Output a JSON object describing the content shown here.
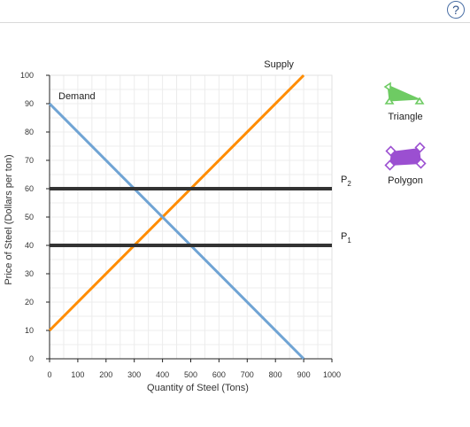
{
  "help": {
    "label": "?"
  },
  "tools": [
    {
      "label": "Triangle",
      "icon": "triangle-tool-icon",
      "color": "#6ecb63"
    },
    {
      "label": "Polygon",
      "icon": "polygon-tool-icon",
      "color": "#9b4fd1"
    }
  ],
  "chart_data": {
    "type": "line",
    "title": "",
    "xlabel": "Quantity of Steel (Tons)",
    "ylabel": "Price of Steel (Dollars per ton)",
    "xlim": [
      0,
      1000
    ],
    "ylim": [
      0,
      100
    ],
    "x_ticks": [
      0,
      100,
      200,
      300,
      400,
      500,
      600,
      700,
      800,
      900,
      1000
    ],
    "y_ticks": [
      0,
      10,
      20,
      30,
      40,
      50,
      60,
      70,
      80,
      90,
      100
    ],
    "grid": true,
    "series": [
      {
        "name": "Supply",
        "color": "#ff8c00",
        "points": [
          [
            0,
            10
          ],
          [
            900,
            100
          ]
        ]
      },
      {
        "name": "Demand",
        "color": "#70a4d4",
        "points": [
          [
            0,
            90
          ],
          [
            900,
            0
          ]
        ]
      },
      {
        "name": "P2",
        "color": "#333333",
        "points": [
          [
            0,
            60
          ],
          [
            1000,
            60
          ]
        ]
      },
      {
        "name": "P1",
        "color": "#333333",
        "points": [
          [
            0,
            40
          ],
          [
            1000,
            40
          ]
        ]
      }
    ],
    "annotations": [
      {
        "series": "Supply",
        "text": "Supply"
      },
      {
        "series": "Demand",
        "text": "Demand"
      },
      {
        "series": "P2",
        "text": "P",
        "sub": "2"
      },
      {
        "series": "P1",
        "text": "P",
        "sub": "1"
      }
    ]
  }
}
